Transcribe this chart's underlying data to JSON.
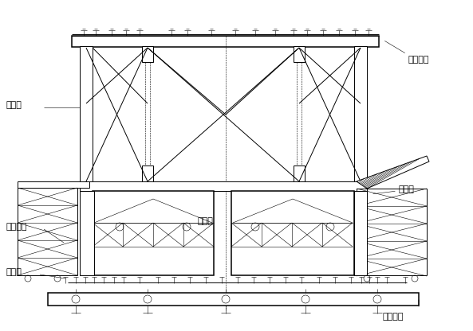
{
  "bg_color": "#ffffff",
  "fig_width": 5.93,
  "fig_height": 4.16,
  "dpi": 100,
  "labels": {
    "qianshang": "前上横梁",
    "lingxing": "菱形架",
    "neidao": "内导梁",
    "waidao": "外导梁",
    "waimo": "外模系统",
    "dizong": "底纵梁",
    "qianxia": "前下横梁"
  },
  "font_size": 8
}
